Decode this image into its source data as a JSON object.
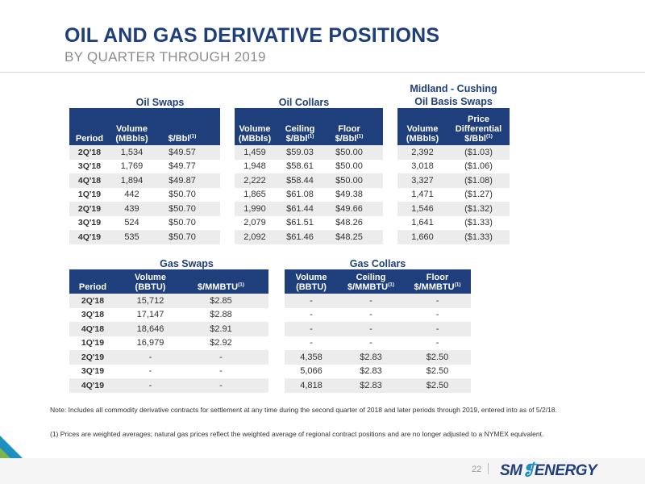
{
  "header": {
    "title": "OIL AND GAS DERIVATIVE POSITIONS",
    "subtitle": "BY QUARTER THROUGH 2019"
  },
  "oil_table": {
    "groups": {
      "swaps": "Oil Swaps",
      "collars": "Oil Collars",
      "basis_line1": "Midland - Cushing",
      "basis_line2": "Oil Basis Swaps"
    },
    "headers": {
      "period": "Period",
      "swaps_volume_1": "Volume",
      "swaps_volume_2": "(MBbls)",
      "swaps_price": "$/Bbl",
      "collars_volume_1": "Volume",
      "collars_volume_2": "(MBbls)",
      "ceiling_1": "Ceiling",
      "ceiling_2": "$/Bbl",
      "floor_1": "Floor",
      "floor_2": "$/Bbl",
      "basis_volume_1": "Volume",
      "basis_volume_2": "(MBbls)",
      "diff_1": "Price",
      "diff_2": "Differential",
      "diff_3": "$/Bbl",
      "footnote_mark": "(1)"
    },
    "rows": [
      {
        "period": "2Q'18",
        "swap_vol": "1,534",
        "swap_price": "$49.57",
        "collar_vol": "1,459",
        "ceiling": "$59.03",
        "floor": "$50.00",
        "basis_vol": "2,392",
        "diff": "($1.03)"
      },
      {
        "period": "3Q'18",
        "swap_vol": "1,769",
        "swap_price": "$49.77",
        "collar_vol": "1,948",
        "ceiling": "$58.61",
        "floor": "$50.00",
        "basis_vol": "3,018",
        "diff": "($1.06)"
      },
      {
        "period": "4Q'18",
        "swap_vol": "1,894",
        "swap_price": "$49.87",
        "collar_vol": "2,222",
        "ceiling": "$58.44",
        "floor": "$50.00",
        "basis_vol": "3,327",
        "diff": "($1.08)"
      },
      {
        "period": "1Q'19",
        "swap_vol": "442",
        "swap_price": "$50.70",
        "collar_vol": "1,865",
        "ceiling": "$61.08",
        "floor": "$49.38",
        "basis_vol": "1,471",
        "diff": "($1.27)"
      },
      {
        "period": "2Q'19",
        "swap_vol": "439",
        "swap_price": "$50.70",
        "collar_vol": "1,990",
        "ceiling": "$61.44",
        "floor": "$49.66",
        "basis_vol": "1,546",
        "diff": "($1.32)"
      },
      {
        "period": "3Q'19",
        "swap_vol": "524",
        "swap_price": "$50.70",
        "collar_vol": "2,079",
        "ceiling": "$61.51",
        "floor": "$48.26",
        "basis_vol": "1,641",
        "diff": "($1.33)"
      },
      {
        "period": "4Q'19",
        "swap_vol": "535",
        "swap_price": "$50.70",
        "collar_vol": "2,092",
        "ceiling": "$61.46",
        "floor": "$48.25",
        "basis_vol": "1,660",
        "diff": "($1.33)"
      }
    ]
  },
  "gas_table": {
    "groups": {
      "swaps": "Gas Swaps",
      "collars": "Gas Collars"
    },
    "headers": {
      "period": "Period",
      "swaps_volume_1": "Volume",
      "swaps_volume_2": "(BBTU)",
      "swaps_price": "$/MMBTU",
      "collars_volume_1": "Volume",
      "collars_volume_2": "(BBTU)",
      "ceiling_1": "Ceiling",
      "ceiling_2": "$/MMBTU",
      "floor_1": "Floor",
      "floor_2": "$/MMBTU",
      "footnote_mark": "(1)"
    },
    "rows": [
      {
        "period": "2Q'18",
        "swap_vol": "15,712",
        "swap_price": "$2.85",
        "collar_vol": "-",
        "ceiling": "-",
        "floor": "-"
      },
      {
        "period": "3Q'18",
        "swap_vol": "17,147",
        "swap_price": "$2.88",
        "collar_vol": "-",
        "ceiling": "-",
        "floor": "-"
      },
      {
        "period": "4Q'18",
        "swap_vol": "18,646",
        "swap_price": "$2.91",
        "collar_vol": "-",
        "ceiling": "-",
        "floor": "-"
      },
      {
        "period": "1Q'19",
        "swap_vol": "16,979",
        "swap_price": "$2.92",
        "collar_vol": "-",
        "ceiling": "-",
        "floor": "-"
      },
      {
        "period": "2Q'19",
        "swap_vol": "-",
        "swap_price": "-",
        "collar_vol": "4,358",
        "ceiling": "$2.83",
        "floor": "$2.50"
      },
      {
        "period": "3Q'19",
        "swap_vol": "-",
        "swap_price": "-",
        "collar_vol": "5,066",
        "ceiling": "$2.83",
        "floor": "$2.50"
      },
      {
        "period": "4Q'19",
        "swap_vol": "-",
        "swap_price": "-",
        "collar_vol": "4,818",
        "ceiling": "$2.83",
        "floor": "$2.50"
      }
    ]
  },
  "notes": {
    "note": "Note: Includes all commodity derivative contracts for settlement at any time during the second quarter of 2018 and later periods through 2019, entered into as of 5/2/18.",
    "footnote": "(1)   Prices are weighted averages; natural gas prices reflect the weighted average of regional contract positions and are no longer adjusted to a NYMEX equivalent."
  },
  "footer": {
    "page_number": "22",
    "logo_sm": "SM",
    "logo_energy": "ENERGY"
  },
  "colors": {
    "navy": "#1f3f7c",
    "row_stripe": "#ececec",
    "subtitle_gray": "#8c8c8c",
    "logo_blue": "#1f8fc0"
  }
}
